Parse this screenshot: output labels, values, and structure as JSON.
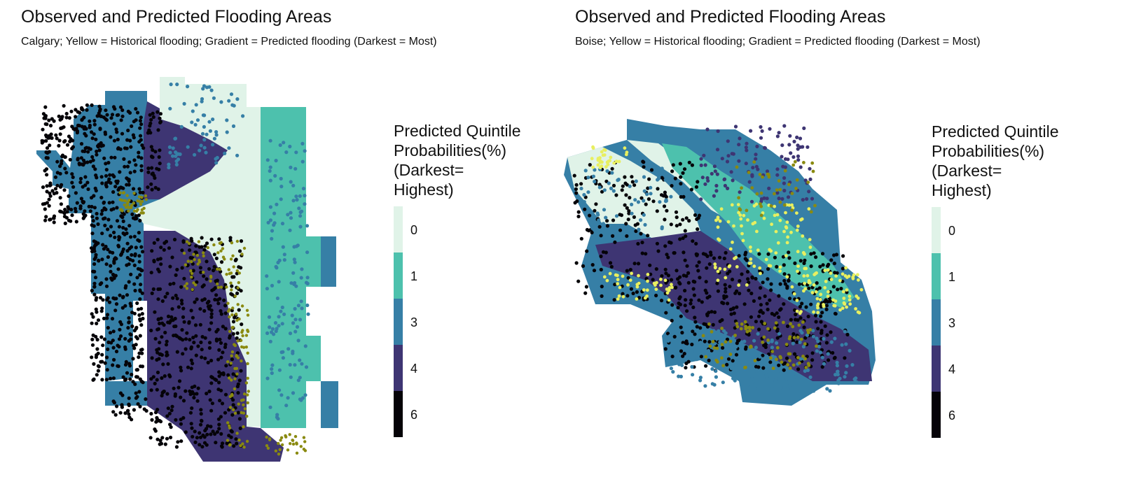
{
  "legend": {
    "title_lines": [
      "Predicted Quintile",
      "Probabilities(%)",
      "(Darkest=",
      "Highest)"
    ],
    "keys": [
      {
        "label": "0",
        "color": "#e0f3e8"
      },
      {
        "label": "1",
        "color": "#4dc1ad"
      },
      {
        "label": "3",
        "color": "#367fa6"
      },
      {
        "label": "4",
        "color": "#3e3573"
      },
      {
        "label": "6",
        "color": "#050308"
      }
    ]
  },
  "colors": {
    "historical_flooding": "#e8ef60",
    "historical_flooding_dark": "#8a8a10",
    "background": "#ffffff"
  },
  "panels": [
    {
      "title": "Observed and Predicted Flooding Areas",
      "subtitle": "Calgary; Yellow = Historical flooding; Gradient = Predicted flooding (Darkest = Most)",
      "city": "Calgary"
    },
    {
      "title": "Observed and Predicted Flooding Areas",
      "subtitle": "Boise; Yellow = Historical flooding; Gradient = Predicted flooding (Darkest = Most)",
      "city": "Boise"
    }
  ]
}
